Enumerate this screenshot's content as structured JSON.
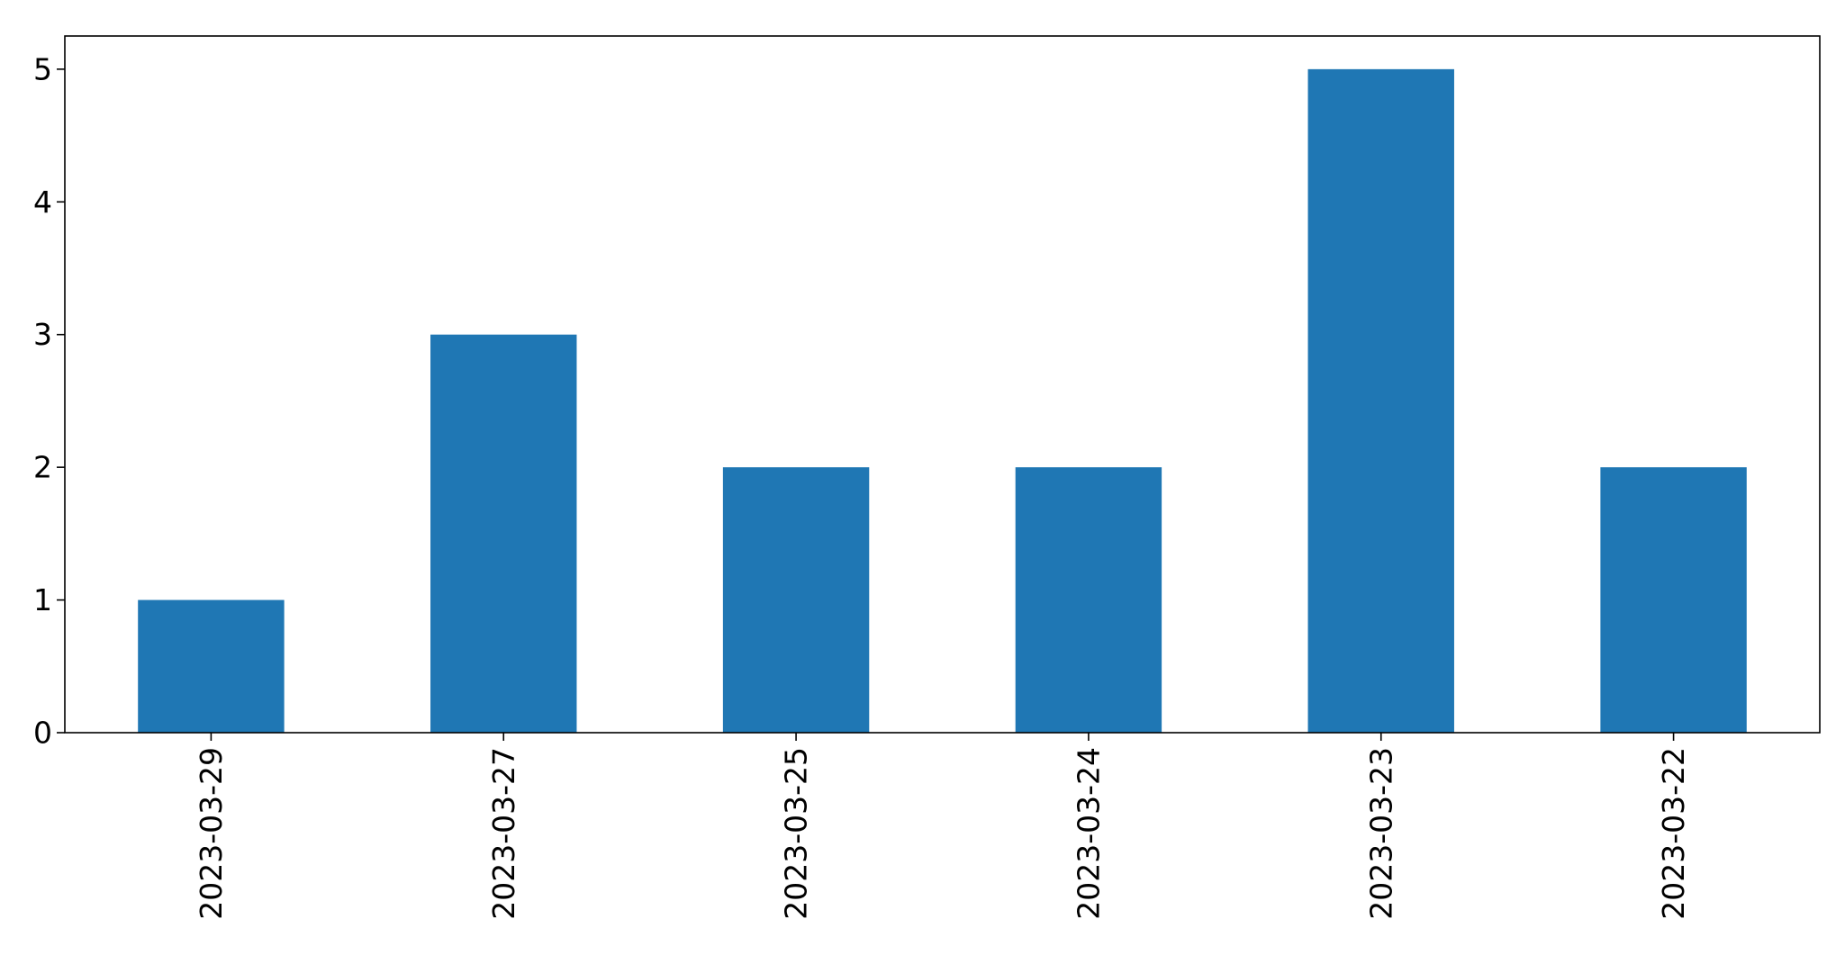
{
  "chart_data": {
    "type": "bar",
    "title": "",
    "xlabel": "",
    "ylabel": "",
    "categories": [
      "2023-03-29",
      "2023-03-27",
      "2023-03-25",
      "2023-03-24",
      "2023-03-23",
      "2023-03-22"
    ],
    "values": [
      1,
      3,
      2,
      2,
      5,
      2
    ],
    "ylim": [
      0,
      5.25
    ],
    "yticks": [
      0,
      1,
      2,
      3,
      4,
      5
    ],
    "grid": false,
    "legend": "none",
    "bar_color": "#1f77b4"
  }
}
